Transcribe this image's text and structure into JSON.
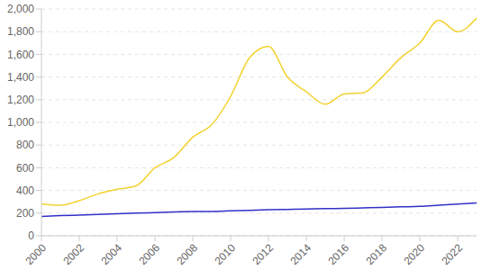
{
  "chart_data": {
    "type": "line",
    "x": [
      2000,
      2001,
      2002,
      2003,
      2004,
      2005,
      2006,
      2007,
      2008,
      2009,
      2010,
      2011,
      2012,
      2013,
      2014,
      2015,
      2016,
      2017,
      2018,
      2019,
      2020,
      2021,
      2022,
      2023
    ],
    "series": [
      {
        "color": "#f2d22e",
        "values": [
          280,
          270,
          310,
          370,
          410,
          440,
          600,
          690,
          870,
          980,
          1230,
          1570,
          1670,
          1400,
          1270,
          1160,
          1250,
          1260,
          1400,
          1570,
          1700,
          1900,
          1800,
          1920
        ]
      },
      {
        "color": "#3030c8",
        "values": [
          170,
          178,
          183,
          188,
          194,
          200,
          205,
          210,
          215,
          215,
          220,
          225,
          230,
          233,
          236,
          240,
          242,
          246,
          250,
          255,
          260,
          270,
          280,
          290
        ]
      }
    ],
    "xlim": [
      2000,
      2023
    ],
    "xticks": [
      2000,
      2002,
      2004,
      2006,
      2008,
      2010,
      2012,
      2014,
      2016,
      2018,
      2020,
      2022
    ],
    "ylim": [
      0,
      2000
    ],
    "yticks": [
      0,
      200,
      400,
      600,
      800,
      {
        "value": 1000,
        "label": "1,000"
      },
      {
        "value": 1200,
        "label": "1,200"
      },
      {
        "value": 1400,
        "label": "1,400"
      },
      {
        "value": 1600,
        "label": "1,600"
      },
      {
        "value": 1800,
        "label": "1,800"
      },
      {
        "value": 2000,
        "label": "2,000"
      }
    ],
    "grid": true,
    "marker": "none"
  }
}
